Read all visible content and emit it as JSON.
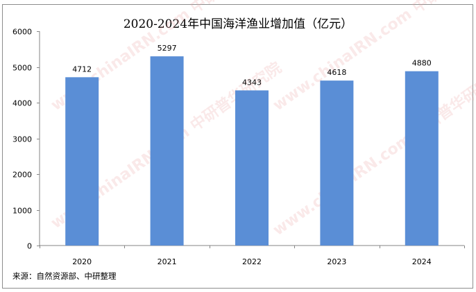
{
  "chart_data": {
    "type": "bar",
    "title": "2020-2024年中国海洋渔业增加值（亿元）",
    "categories": [
      "2020",
      "2021",
      "2022",
      "2023",
      "2024"
    ],
    "values": [
      4712,
      5297,
      4343,
      4618,
      4880
    ],
    "ylim": [
      0,
      6000
    ],
    "yticks": [
      0,
      1000,
      2000,
      3000,
      4000,
      5000,
      6000
    ],
    "grid": false,
    "data_labels": true,
    "bar_color": "#5a8ed6",
    "xlabel": "",
    "ylabel": ""
  },
  "source": "来源：自然资源部、中研整理",
  "watermark": "www.chinaIRN.com 中研普华研究院"
}
